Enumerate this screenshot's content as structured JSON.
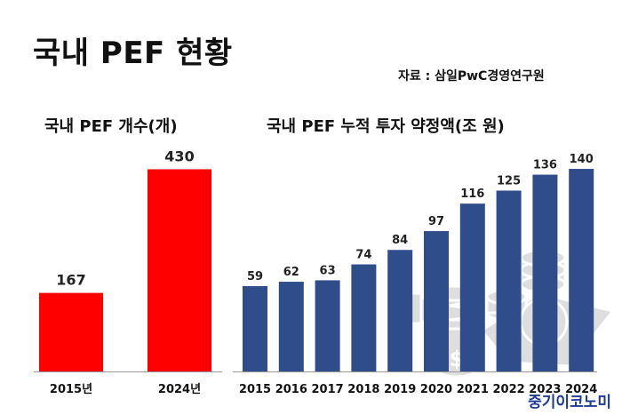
{
  "header": {
    "title": "국내 PEF 현황",
    "source": "자료 : 삼일PwC경영연구원"
  },
  "footer": {
    "brand": "중기이코노미"
  },
  "colors": {
    "left_bar": "#ff0000",
    "right_bar": "#2f4d8a",
    "axis": "#999999"
  },
  "icons": [
    "hand-money-bag-icon",
    "coin-stack-dollar-icon"
  ],
  "chart_data": [
    {
      "type": "bar",
      "title": "국내 PEF 개수(개)",
      "categories": [
        "2015년",
        "2024년"
      ],
      "values": [
        167,
        430
      ],
      "ylim": [
        0,
        480
      ],
      "grid": false
    },
    {
      "type": "bar",
      "title": "국내 PEF 누적 투자 약정액(조 원)",
      "categories": [
        "2015",
        "2016",
        "2017",
        "2018",
        "2019",
        "2020",
        "2021",
        "2022",
        "2023",
        "2024"
      ],
      "values": [
        59,
        62,
        63,
        74,
        84,
        97,
        116,
        125,
        136,
        140
      ],
      "ylim": [
        0,
        156
      ],
      "grid": false
    }
  ]
}
